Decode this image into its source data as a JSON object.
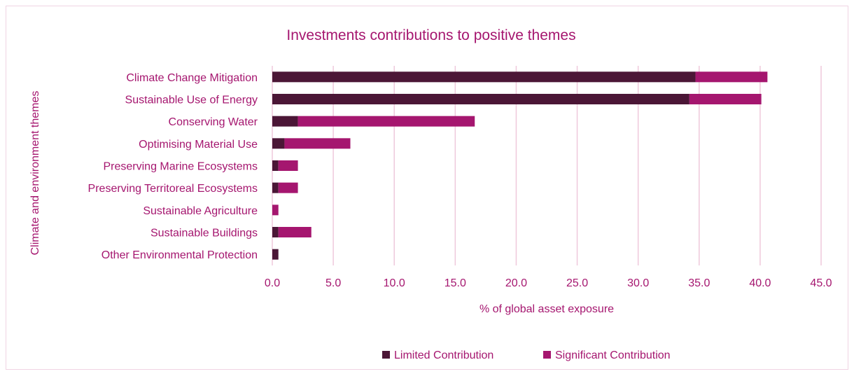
{
  "chart_data": {
    "type": "bar",
    "orientation": "horizontal",
    "stacked": true,
    "title": "Investments contributions to positive themes",
    "xlabel": "% of global asset exposure",
    "ylabel": "Climate and environment themes",
    "categories": [
      "Climate Change Mitigation",
      "Sustainable Use of Energy",
      "Conserving Water",
      "Optimising Material Use",
      "Preserving Marine Ecosystems",
      "Preserving Territoreal Ecosystems",
      "Sustainable Agriculture",
      "Sustainable Buildings",
      "Other Environmental Protection"
    ],
    "series": [
      {
        "name": "Limited Contribution",
        "color": "#4b1636",
        "values": [
          34.7,
          34.2,
          2.1,
          1.0,
          0.5,
          0.5,
          0.0,
          0.5,
          0.5
        ]
      },
      {
        "name": "Significant Contribution",
        "color": "#a5166f",
        "values": [
          5.9,
          5.9,
          14.5,
          5.4,
          1.6,
          1.6,
          0.5,
          2.7,
          0.0
        ]
      }
    ],
    "xlim": [
      0,
      45
    ],
    "xticks": [
      "0.0",
      "5.0",
      "10.0",
      "15.0",
      "20.0",
      "25.0",
      "30.0",
      "35.0",
      "40.0",
      "45.0"
    ],
    "grid": "vertical",
    "legend": "bottom-center"
  }
}
